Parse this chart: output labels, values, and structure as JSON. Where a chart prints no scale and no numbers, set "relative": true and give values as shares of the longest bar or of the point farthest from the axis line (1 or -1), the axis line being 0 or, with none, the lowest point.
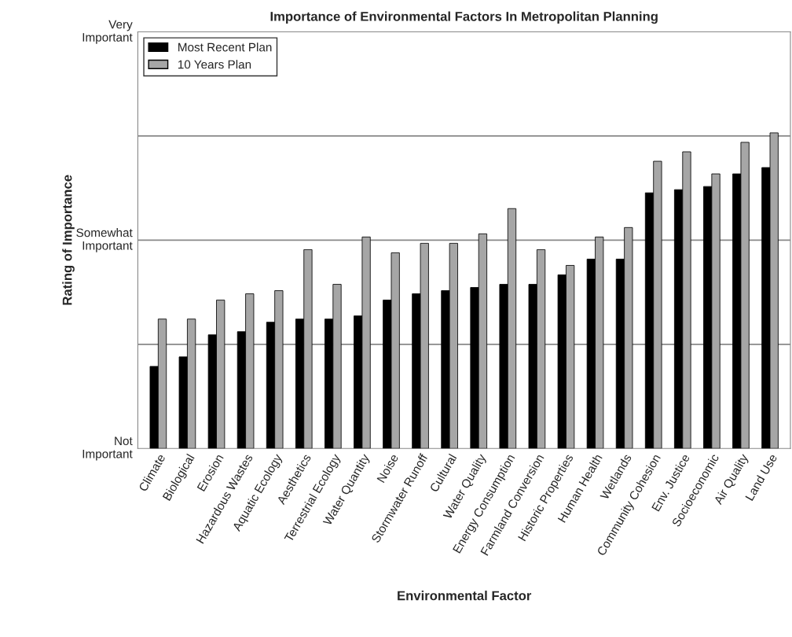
{
  "chart_data": {
    "type": "bar",
    "title": "Importance of Environmental Factors In Metropolitan Planning",
    "xlabel": "Environmental Factor",
    "ylabel": "Rating of Importance",
    "annotations": [
      "Not\nImportant",
      "Somewhat\nImportant",
      "Very\nImportant"
    ],
    "categories": [
      "Climate",
      "Biological",
      "Erosion",
      "Hazardous Wastes",
      "Aquatic Ecology",
      "Aesthetics",
      "Terrestrial Ecology",
      "Water Quantity",
      "Noise",
      "Stormwater Runoff",
      "Cultural",
      "Water Quality",
      "Energy Consumption",
      "Farmland Conversion",
      "Historic Properties",
      "Human Health",
      "Wetlands",
      "Community Cohesion",
      "Env. Justice",
      "Socioeconomic",
      "Air Quality",
      "Land Use"
    ],
    "series": [
      {
        "name": "Most Recent Plan",
        "color": "#000000",
        "values": [
          0.26,
          0.29,
          0.36,
          0.37,
          0.4,
          0.41,
          0.41,
          0.42,
          0.47,
          0.49,
          0.5,
          0.51,
          0.52,
          0.52,
          0.55,
          0.6,
          0.6,
          0.81,
          0.82,
          0.83,
          0.87,
          0.89
        ]
      },
      {
        "name": "10 Years Plan",
        "color": "#a6a6a6",
        "values": [
          0.41,
          0.41,
          0.47,
          0.49,
          0.5,
          0.63,
          0.52,
          0.67,
          0.62,
          0.65,
          0.65,
          0.68,
          0.76,
          0.63,
          0.58,
          0.67,
          0.7,
          0.91,
          0.94,
          0.87,
          0.97,
          1
        ]
      }
    ],
    "relative": true,
    "grid": "y",
    "legend": "top left"
  }
}
